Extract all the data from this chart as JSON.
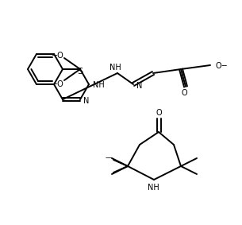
{
  "background_color": "#ffffff",
  "line_color": "#000000",
  "line_width": 1.4,
  "figsize": [
    3.05,
    2.84
  ],
  "dpi": 100
}
